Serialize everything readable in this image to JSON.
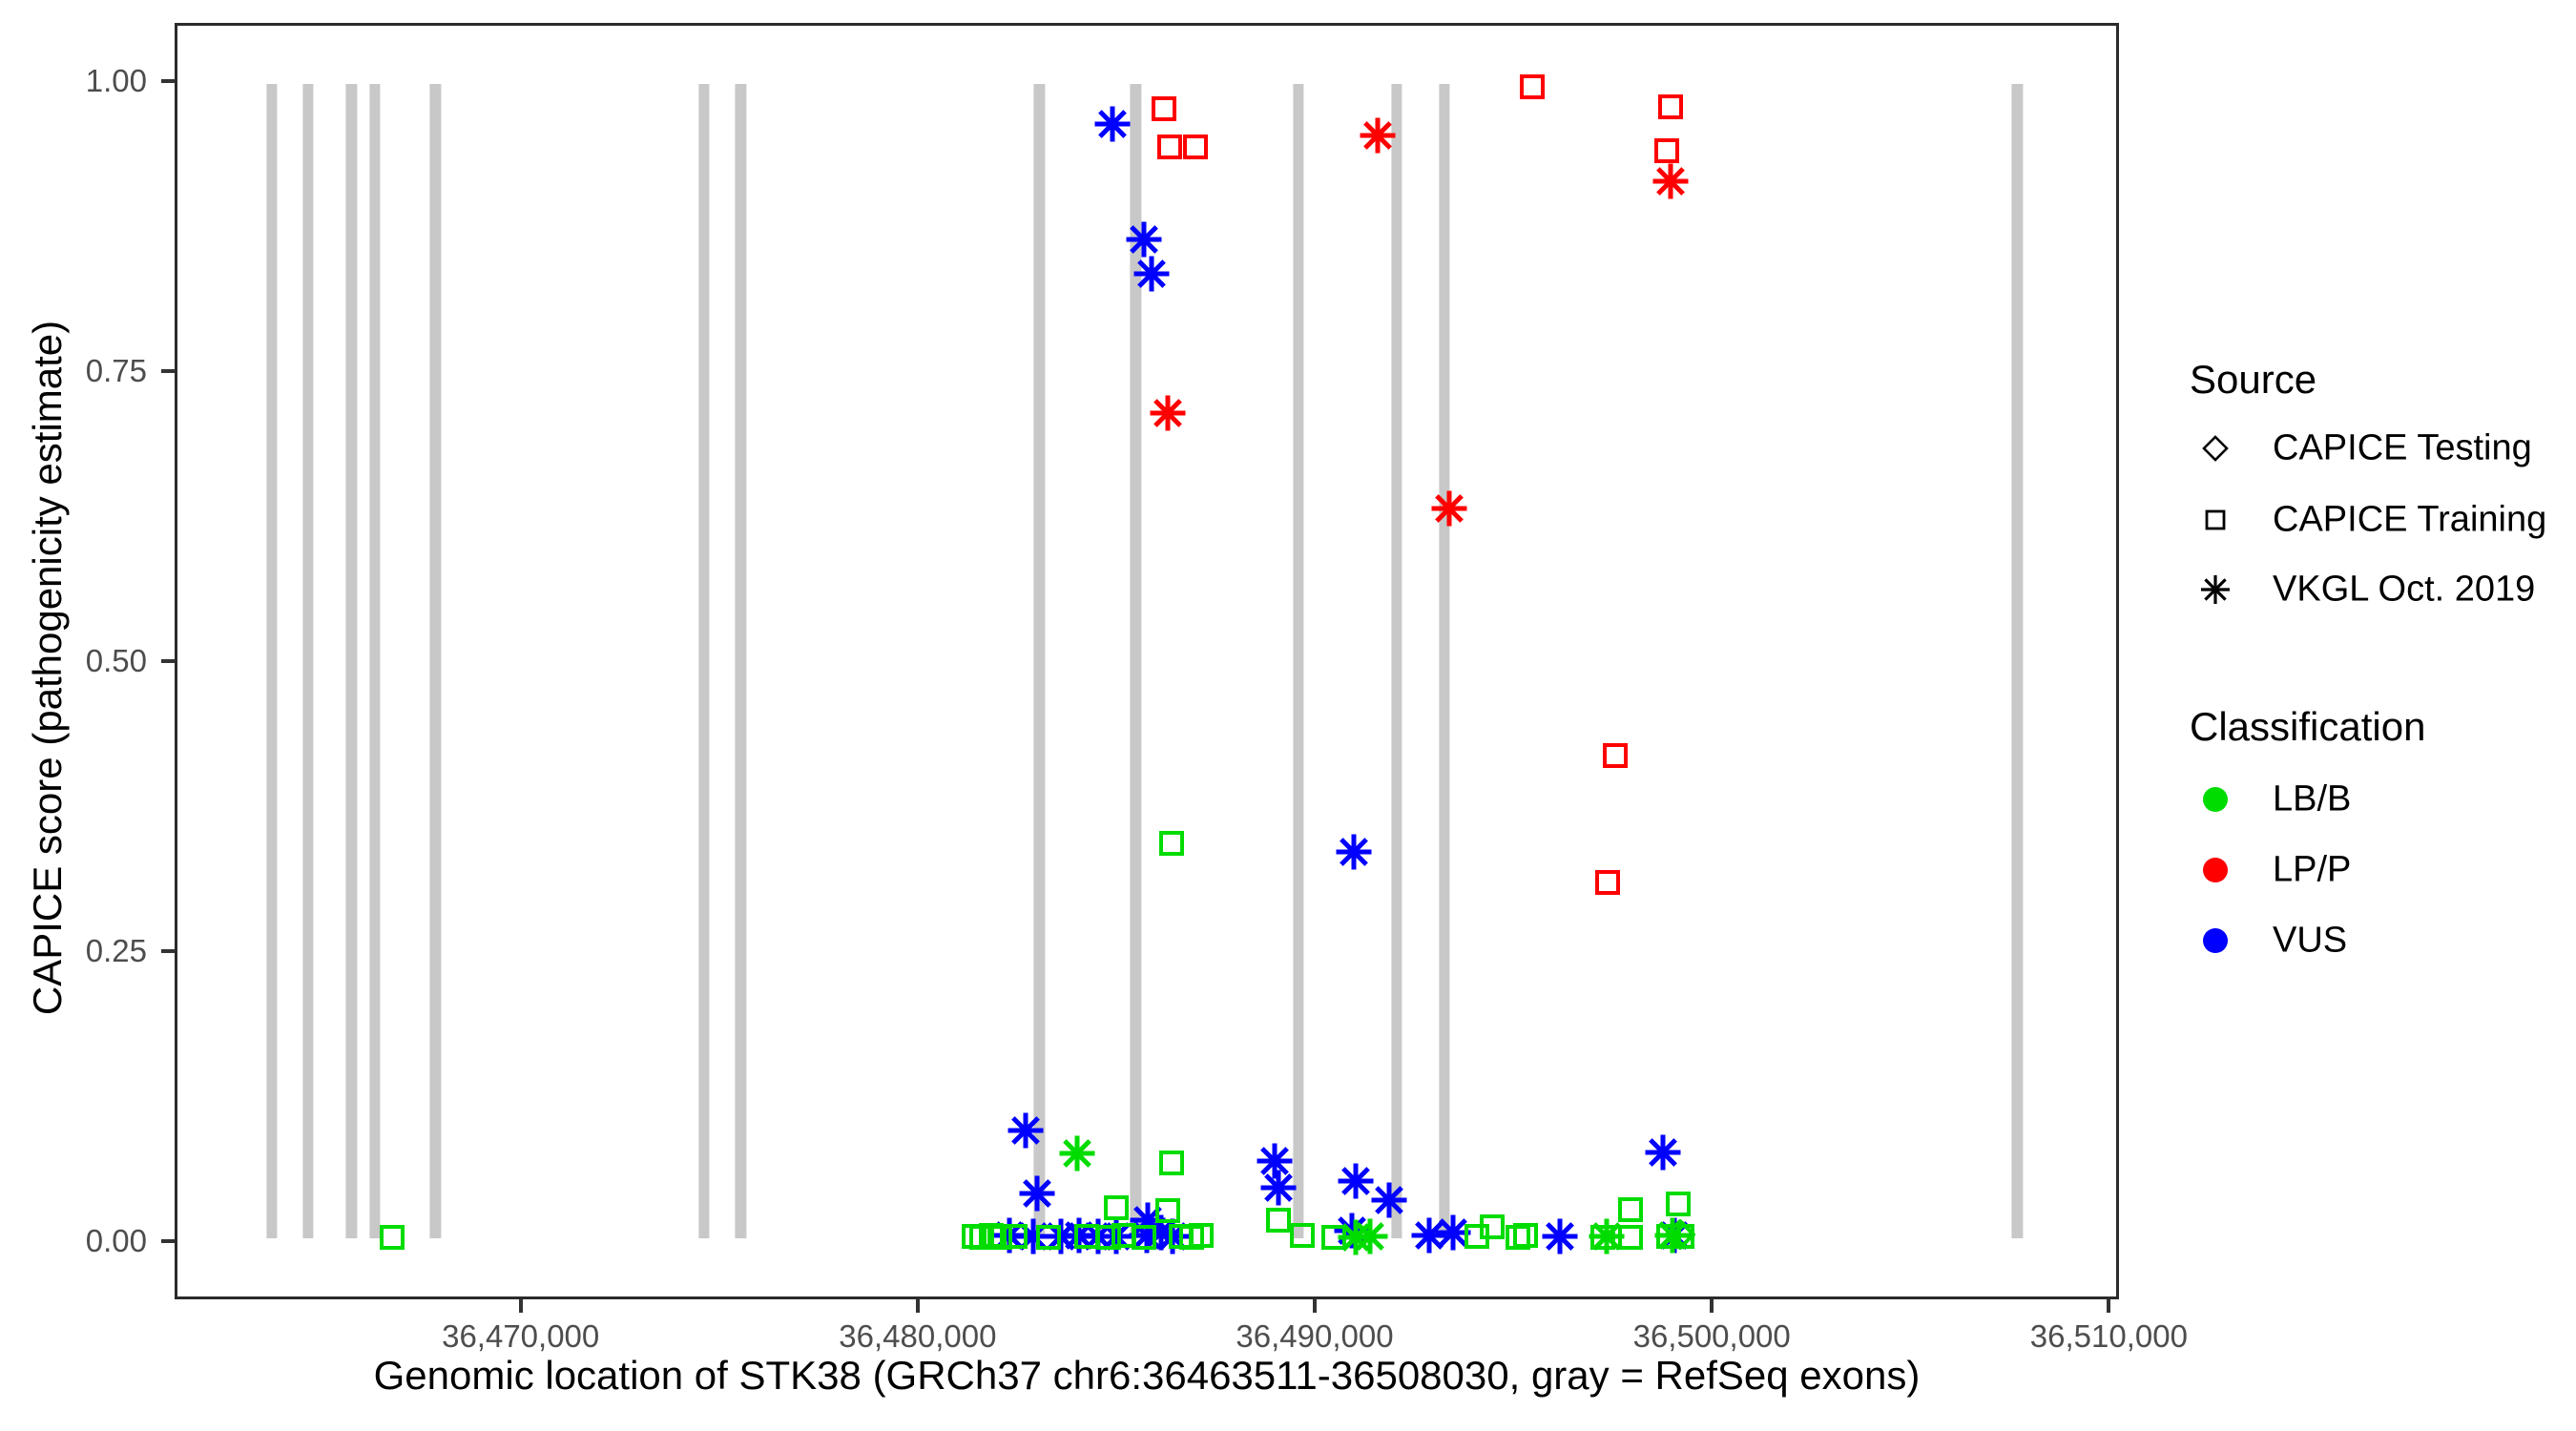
{
  "axes": {
    "x": {
      "title": "Genomic location of STK38 (GRCh37 chr6:36463511-36508030, gray = RefSeq exons)",
      "tick_values": [
        36470000,
        36480000,
        36490000,
        36500000,
        36510000
      ],
      "tick_labels": [
        "36,470,000",
        "36,480,000",
        "36,490,000",
        "36,500,000",
        "36,510,000"
      ]
    },
    "y": {
      "title": "CAPICE score (pathogenicity estimate)",
      "tick_values": [
        0,
        0.25,
        0.5,
        0.75,
        1.0
      ],
      "tick_labels": [
        "0.00",
        "0.25",
        "0.50",
        "0.75",
        "1.00"
      ]
    }
  },
  "legend": {
    "source": {
      "title": "Source",
      "items": [
        {
          "label": "CAPICE Testing",
          "shape": "diamond"
        },
        {
          "label": "CAPICE Training",
          "shape": "square"
        },
        {
          "label": "VKGL Oct. 2019",
          "shape": "asterisk"
        }
      ]
    },
    "classification": {
      "title": "Classification",
      "items": [
        {
          "label": "LB/B",
          "class_key": "LB/B"
        },
        {
          "label": "LP/P",
          "class_key": "LP/P"
        },
        {
          "label": "VUS",
          "class_key": "VUS"
        }
      ]
    }
  },
  "colors": {
    "LB/B": "#00dc00",
    "LP/P": "#ff0000",
    "VUS": "#0000ff",
    "exon": "#c8c8c8",
    "axis_text": "#4d4d4d",
    "border": "#2b2b2b"
  },
  "chart_data": {
    "type": "scatter",
    "title": "",
    "xlabel": "Genomic location of STK38 (GRCh37 chr6:36463511-36508030, gray = RefSeq exons)",
    "ylabel": "CAPICE score (pathogenicity estimate)",
    "xlim": [
      36461285,
      36510256
    ],
    "ylim": [
      -0.05,
      1.05
    ],
    "grid": false,
    "legend_position": "right",
    "exon_note": "gray vertical bars = RefSeq exons, drawn from y=0 to y=1",
    "exon_width_bp": 270,
    "exon_centers": [
      36463675,
      36464582,
      36465680,
      36466277,
      36467804,
      36474582,
      36475513,
      36483055,
      36485490,
      36489595,
      36492077,
      36493294,
      36507757
    ],
    "points": [
      {
        "x": 36484900,
        "y": 0.965,
        "source": "VKGL Oct. 2019",
        "classification": "VUS"
      },
      {
        "x": 36485700,
        "y": 0.865,
        "source": "VKGL Oct. 2019",
        "classification": "VUS"
      },
      {
        "x": 36485900,
        "y": 0.835,
        "source": "VKGL Oct. 2019",
        "classification": "VUS"
      },
      {
        "x": 36491000,
        "y": 0.335,
        "source": "VKGL Oct. 2019",
        "classification": "VUS"
      },
      {
        "x": 36482700,
        "y": 0.094,
        "source": "VKGL Oct. 2019",
        "classification": "VUS"
      },
      {
        "x": 36498800,
        "y": 0.075,
        "source": "VKGL Oct. 2019",
        "classification": "VUS"
      },
      {
        "x": 36489000,
        "y": 0.067,
        "source": "VKGL Oct. 2019",
        "classification": "VUS"
      },
      {
        "x": 36491050,
        "y": 0.05,
        "source": "VKGL Oct. 2019",
        "classification": "VUS"
      },
      {
        "x": 36489100,
        "y": 0.044,
        "source": "VKGL Oct. 2019",
        "classification": "VUS"
      },
      {
        "x": 36483000,
        "y": 0.039,
        "source": "VKGL Oct. 2019",
        "classification": "VUS"
      },
      {
        "x": 36491900,
        "y": 0.033,
        "source": "VKGL Oct. 2019",
        "classification": "VUS"
      },
      {
        "x": 36485800,
        "y": 0.016,
        "source": "VKGL Oct. 2019",
        "classification": "VUS"
      },
      {
        "x": 36482300,
        "y": 0.003,
        "source": "VKGL Oct. 2019",
        "classification": "VUS"
      },
      {
        "x": 36482900,
        "y": 0.002,
        "source": "VKGL Oct. 2019",
        "classification": "VUS"
      },
      {
        "x": 36483600,
        "y": 0.002,
        "source": "VKGL Oct. 2019",
        "classification": "VUS"
      },
      {
        "x": 36484050,
        "y": 0.003,
        "source": "VKGL Oct. 2019",
        "classification": "VUS"
      },
      {
        "x": 36484550,
        "y": 0.002,
        "source": "VKGL Oct. 2019",
        "classification": "VUS"
      },
      {
        "x": 36485000,
        "y": 0.002,
        "source": "VKGL Oct. 2019",
        "classification": "VUS"
      },
      {
        "x": 36485770,
        "y": 0.003,
        "source": "VKGL Oct. 2019",
        "classification": "VUS"
      },
      {
        "x": 36486130,
        "y": 0.005,
        "source": "VKGL Oct. 2019",
        "classification": "VUS"
      },
      {
        "x": 36486420,
        "y": 0.002,
        "source": "VKGL Oct. 2019",
        "classification": "VUS"
      },
      {
        "x": 36490950,
        "y": 0.007,
        "source": "VKGL Oct. 2019",
        "classification": "VUS"
      },
      {
        "x": 36492900,
        "y": 0.003,
        "source": "VKGL Oct. 2019",
        "classification": "VUS"
      },
      {
        "x": 36493500,
        "y": 0.005,
        "source": "VKGL Oct. 2019",
        "classification": "VUS"
      },
      {
        "x": 36496200,
        "y": 0.002,
        "source": "VKGL Oct. 2019",
        "classification": "VUS"
      },
      {
        "x": 36499100,
        "y": 0.003,
        "source": "VKGL Oct. 2019",
        "classification": "VUS"
      },
      {
        "x": 36491600,
        "y": 0.955,
        "source": "VKGL Oct. 2019",
        "classification": "LP/P"
      },
      {
        "x": 36499000,
        "y": 0.915,
        "source": "VKGL Oct. 2019",
        "classification": "LP/P"
      },
      {
        "x": 36486300,
        "y": 0.715,
        "source": "VKGL Oct. 2019",
        "classification": "LP/P"
      },
      {
        "x": 36493400,
        "y": 0.632,
        "source": "VKGL Oct. 2019",
        "classification": "LP/P"
      },
      {
        "x": 36484000,
        "y": 0.074,
        "source": "VKGL Oct. 2019",
        "classification": "LB/B"
      },
      {
        "x": 36491050,
        "y": 0.001,
        "source": "VKGL Oct. 2019",
        "classification": "LB/B"
      },
      {
        "x": 36491400,
        "y": 0.002,
        "source": "VKGL Oct. 2019",
        "classification": "LB/B"
      },
      {
        "x": 36497380,
        "y": 0.002,
        "source": "VKGL Oct. 2019",
        "classification": "LB/B"
      },
      {
        "x": 36499050,
        "y": 0.003,
        "source": "VKGL Oct. 2019",
        "classification": "LB/B"
      },
      {
        "x": 36495500,
        "y": 0.997,
        "source": "CAPICE Training",
        "classification": "LP/P"
      },
      {
        "x": 36499000,
        "y": 0.98,
        "source": "CAPICE Training",
        "classification": "LP/P"
      },
      {
        "x": 36486200,
        "y": 0.978,
        "source": "CAPICE Training",
        "classification": "LP/P"
      },
      {
        "x": 36486350,
        "y": 0.945,
        "source": "CAPICE Training",
        "classification": "LP/P"
      },
      {
        "x": 36487000,
        "y": 0.945,
        "source": "CAPICE Training",
        "classification": "LP/P"
      },
      {
        "x": 36498900,
        "y": 0.942,
        "source": "CAPICE Training",
        "classification": "LP/P"
      },
      {
        "x": 36497600,
        "y": 0.418,
        "source": "CAPICE Training",
        "classification": "LP/P"
      },
      {
        "x": 36497400,
        "y": 0.308,
        "source": "CAPICE Training",
        "classification": "LP/P"
      },
      {
        "x": 36486400,
        "y": 0.342,
        "source": "CAPICE Training",
        "classification": "LB/B"
      },
      {
        "x": 36486400,
        "y": 0.066,
        "source": "CAPICE Training",
        "classification": "LB/B"
      },
      {
        "x": 36499200,
        "y": 0.03,
        "source": "CAPICE Training",
        "classification": "LB/B"
      },
      {
        "x": 36485000,
        "y": 0.027,
        "source": "CAPICE Training",
        "classification": "LB/B"
      },
      {
        "x": 36498000,
        "y": 0.025,
        "source": "CAPICE Training",
        "classification": "LB/B"
      },
      {
        "x": 36486300,
        "y": 0.024,
        "source": "CAPICE Training",
        "classification": "LB/B"
      },
      {
        "x": 36489100,
        "y": 0.016,
        "source": "CAPICE Training",
        "classification": "LB/B"
      },
      {
        "x": 36494500,
        "y": 0.01,
        "source": "CAPICE Training",
        "classification": "LB/B"
      },
      {
        "x": 36489700,
        "y": 0.003,
        "source": "CAPICE Training",
        "classification": "LB/B"
      },
      {
        "x": 36466700,
        "y": 0.001,
        "source": "CAPICE Training",
        "classification": "LB/B"
      },
      {
        "x": 36481400,
        "y": 0.002,
        "source": "CAPICE Training",
        "classification": "LB/B"
      },
      {
        "x": 36481600,
        "y": 0.001,
        "source": "CAPICE Training",
        "classification": "LB/B"
      },
      {
        "x": 36481850,
        "y": 0.003,
        "source": "CAPICE Training",
        "classification": "LB/B"
      },
      {
        "x": 36482050,
        "y": 0.001,
        "source": "CAPICE Training",
        "classification": "LB/B"
      },
      {
        "x": 36482450,
        "y": 0.002,
        "source": "CAPICE Training",
        "classification": "LB/B"
      },
      {
        "x": 36483300,
        "y": 0.001,
        "source": "CAPICE Training",
        "classification": "LB/B"
      },
      {
        "x": 36484250,
        "y": 0.002,
        "source": "CAPICE Training",
        "classification": "LB/B"
      },
      {
        "x": 36484800,
        "y": 0.001,
        "source": "CAPICE Training",
        "classification": "LB/B"
      },
      {
        "x": 36485200,
        "y": 0.003,
        "source": "CAPICE Training",
        "classification": "LB/B"
      },
      {
        "x": 36485700,
        "y": 0.001,
        "source": "CAPICE Training",
        "classification": "LB/B"
      },
      {
        "x": 36486650,
        "y": 0.002,
        "source": "CAPICE Training",
        "classification": "LB/B"
      },
      {
        "x": 36486900,
        "y": 0.001,
        "source": "CAPICE Training",
        "classification": "LB/B"
      },
      {
        "x": 36487150,
        "y": 0.003,
        "source": "CAPICE Training",
        "classification": "LB/B"
      },
      {
        "x": 36490500,
        "y": 0.001,
        "source": "CAPICE Training",
        "classification": "LB/B"
      },
      {
        "x": 36494100,
        "y": 0.002,
        "source": "CAPICE Training",
        "classification": "LB/B"
      },
      {
        "x": 36495150,
        "y": 0.001,
        "source": "CAPICE Training",
        "classification": "LB/B"
      },
      {
        "x": 36495350,
        "y": 0.003,
        "source": "CAPICE Training",
        "classification": "LB/B"
      },
      {
        "x": 36497300,
        "y": 0.001,
        "source": "CAPICE Training",
        "classification": "LB/B"
      },
      {
        "x": 36498000,
        "y": 0.001,
        "source": "CAPICE Training",
        "classification": "LB/B"
      },
      {
        "x": 36498950,
        "y": 0.002,
        "source": "CAPICE Training",
        "classification": "LB/B"
      },
      {
        "x": 36499300,
        "y": 0.002,
        "source": "CAPICE Training",
        "classification": "LB/B"
      },
      {
        "x": 36499250,
        "y": 0.004,
        "source": "CAPICE Testing",
        "classification": "LB/B"
      }
    ]
  }
}
